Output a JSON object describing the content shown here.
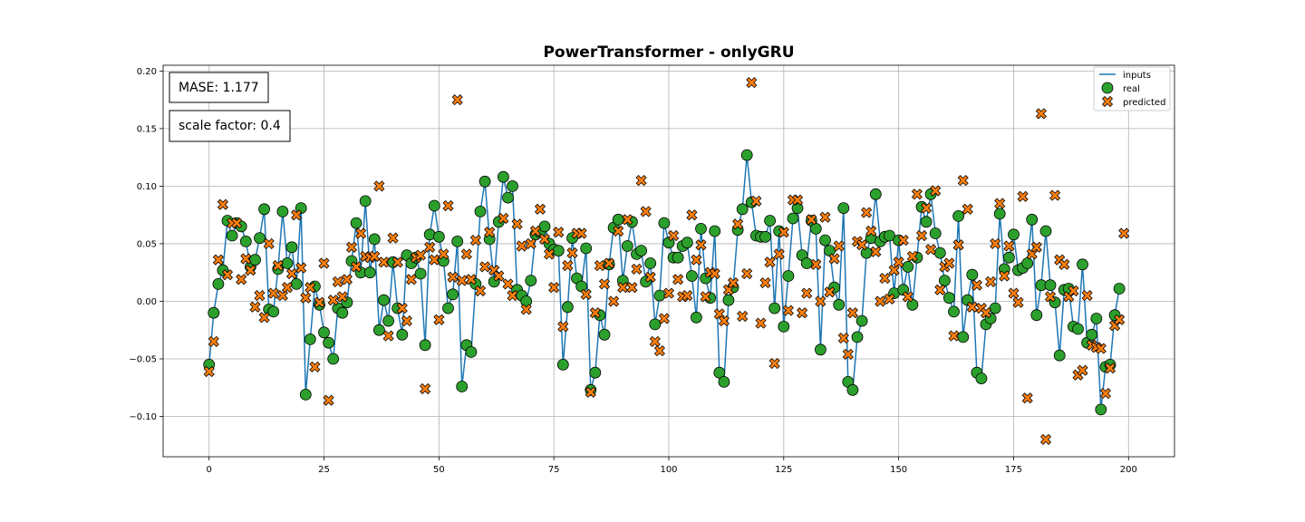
{
  "chart_data": {
    "type": "scatter",
    "title": "PowerTransformer - onlyGRU",
    "xlabel": "",
    "ylabel": "",
    "xlim": [
      -10,
      210
    ],
    "ylim": [
      -0.135,
      0.205
    ],
    "xticks": [
      0,
      25,
      50,
      75,
      100,
      125,
      150,
      175,
      200
    ],
    "yticks": [
      -0.1,
      -0.05,
      0.0,
      0.05,
      0.1,
      0.15,
      0.2
    ],
    "ytick_labels": [
      "−0.10",
      "−0.05",
      "0.00",
      "0.05",
      "0.10",
      "0.15",
      "0.20"
    ],
    "grid": true,
    "legend_position": "top-right",
    "annotations": [
      "MASE: 1.177",
      "scale factor: 0.4"
    ],
    "series": [
      {
        "name": "inputs",
        "style": "line",
        "color": "#1f77b4"
      },
      {
        "name": "real",
        "style": "circle-marker",
        "color": "#2ca02c"
      },
      {
        "name": "predicted",
        "style": "x-marker",
        "color": "#ff7f0e"
      }
    ],
    "real": [
      -0.055,
      -0.01,
      0.015,
      0.027,
      0.07,
      0.057,
      0.068,
      0.065,
      0.052,
      0.03,
      0.036,
      0.055,
      0.08,
      -0.007,
      -0.009,
      0.028,
      0.078,
      0.033,
      0.047,
      0.015,
      0.081,
      -0.081,
      -0.033,
      0.013,
      -0.003,
      -0.027,
      -0.036,
      -0.05,
      -0.006,
      -0.01,
      -0.001,
      0.035,
      0.068,
      0.025,
      0.087,
      0.025,
      0.054,
      -0.025,
      0.001,
      -0.017,
      0.034,
      -0.006,
      -0.029,
      0.04,
      0.033,
      0.038,
      0.024,
      -0.038,
      0.058,
      0.083,
      0.056,
      0.035,
      -0.006,
      0.006,
      0.052,
      -0.074,
      -0.038,
      -0.044,
      0.015,
      0.078,
      0.104,
      0.054,
      0.017,
      0.069,
      0.108,
      0.09,
      0.1,
      0.01,
      0.005,
      0.0,
      0.018,
      0.058,
      0.06,
      0.065,
      0.05,
      0.045,
      0.044,
      -0.055,
      -0.005,
      0.055,
      0.02,
      0.013,
      0.046,
      -0.077,
      -0.062,
      -0.012,
      -0.029,
      0.032,
      0.064,
      0.071,
      0.018,
      0.048,
      0.069,
      0.041,
      0.044,
      0.017,
      0.033,
      -0.02,
      0.005,
      0.068,
      0.051,
      0.038,
      0.038,
      0.048,
      0.051,
      0.022,
      -0.014,
      0.063,
      0.02,
      0.003,
      0.061,
      -0.062,
      -0.07,
      0.001,
      0.012,
      0.062,
      0.08,
      0.127,
      0.086,
      0.057,
      0.056,
      0.056,
      0.07,
      -0.006,
      0.061,
      -0.022,
      0.022,
      0.072,
      0.081,
      0.04,
      0.033,
      0.07,
      0.063,
      -0.042,
      0.053,
      0.044,
      0.012,
      -0.003,
      0.081,
      -0.07,
      -0.077,
      -0.031,
      -0.017,
      0.042,
      0.055,
      0.093,
      0.052,
      0.056,
      0.057,
      0.007,
      0.053,
      0.01,
      0.03,
      -0.003,
      0.038,
      0.082,
      0.069,
      0.093,
      0.059,
      0.042,
      0.018,
      0.003,
      -0.009,
      0.074,
      -0.031,
      0.001,
      0.023,
      -0.062,
      -0.067,
      -0.02,
      -0.015,
      -0.006,
      0.076,
      0.028,
      0.038,
      0.058,
      0.027,
      0.029,
      0.033,
      0.071,
      -0.012,
      0.014,
      0.061,
      0.014,
      -0.001,
      -0.047,
      0.01,
      0.011,
      -0.022,
      -0.024,
      0.032,
      -0.036,
      -0.029,
      -0.015,
      -0.094,
      -0.057,
      -0.055,
      -0.012,
      0.011
    ],
    "predicted": [
      -0.061,
      -0.035,
      0.036,
      0.084,
      0.023,
      0.068,
      0.068,
      0.019,
      0.037,
      0.027,
      -0.005,
      0.005,
      -0.014,
      0.05,
      0.007,
      0.031,
      0.005,
      0.012,
      0.024,
      0.075,
      0.029,
      0.003,
      0.012,
      -0.057,
      -0.001,
      0.033,
      -0.086,
      0.001,
      0.017,
      0.004,
      0.019,
      0.047,
      0.03,
      0.059,
      0.039,
      0.038,
      0.039,
      0.1,
      0.034,
      -0.03,
      0.055,
      0.034,
      -0.006,
      -0.017,
      0.019,
      0.038,
      0.04,
      -0.076,
      0.047,
      0.036,
      -0.016,
      0.041,
      0.083,
      0.021,
      0.175,
      0.018,
      0.041,
      0.019,
      0.053,
      0.009,
      0.03,
      0.06,
      0.027,
      0.022,
      0.072,
      0.015,
      0.005,
      0.067,
      0.048,
      -0.007,
      0.05,
      0.061,
      0.08,
      0.054,
      0.041,
      0.012,
      0.06,
      -0.022,
      0.031,
      0.042,
      0.059,
      0.059,
      0.006,
      -0.079,
      -0.01,
      0.031,
      0.015,
      0.033,
      0.0,
      0.061,
      0.012,
      0.071,
      0.012,
      0.028,
      0.105,
      0.078,
      0.021,
      -0.035,
      -0.043,
      -0.015,
      0.007,
      0.057,
      0.019,
      0.004,
      0.005,
      0.075,
      0.036,
      0.049,
      0.004,
      0.025,
      0.024,
      -0.011,
      -0.017,
      0.01,
      0.016,
      0.067,
      -0.013,
      0.024,
      0.19,
      0.087,
      -0.019,
      0.016,
      0.034,
      -0.054,
      0.041,
      0.06,
      -0.008,
      0.088,
      0.088,
      -0.01,
      0.007,
      0.071,
      0.032,
      0.0,
      0.073,
      0.008,
      0.037,
      0.048,
      -0.032,
      -0.046,
      -0.01,
      0.052,
      0.049,
      0.077,
      0.061,
      0.043,
      0.0,
      0.02,
      0.002,
      0.027,
      0.034,
      0.053,
      0.004,
      0.039,
      0.093,
      0.057,
      0.081,
      0.045,
      0.096,
      0.01,
      0.03,
      0.033,
      -0.03,
      0.049,
      0.105,
      0.08,
      -0.005,
      0.014,
      -0.006,
      -0.01,
      0.017,
      0.05,
      0.085,
      0.022,
      0.048,
      0.007,
      -0.001,
      0.091,
      -0.084,
      0.041,
      0.047,
      0.163,
      -0.12,
      0.004,
      0.092,
      0.036,
      0.032,
      0.004,
      0.009,
      -0.064,
      -0.06,
      0.005,
      -0.038,
      -0.04,
      -0.041,
      -0.08,
      -0.058,
      -0.021,
      -0.016,
      0.059
    ]
  }
}
